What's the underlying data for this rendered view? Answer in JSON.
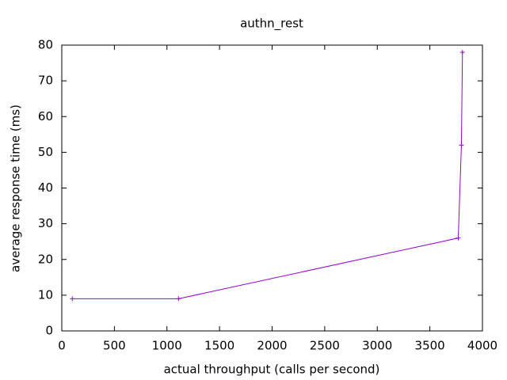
{
  "chart_data": {
    "type": "line",
    "title": "authn_rest",
    "x_label": "actual throughput (calls per second)",
    "y_label": "average response time (ms)",
    "x": [
      100,
      1110,
      3770,
      3800,
      3810
    ],
    "values": [
      9,
      9,
      26,
      52,
      78
    ],
    "color": "#9400d3",
    "xlim": [
      0,
      4000
    ],
    "xticks": [
      0,
      500,
      1000,
      1500,
      2000,
      2500,
      3000,
      3500,
      4000
    ],
    "ylim": [
      0,
      80
    ],
    "yticks": [
      0,
      10,
      20,
      30,
      40,
      50,
      60,
      70,
      80
    ]
  }
}
